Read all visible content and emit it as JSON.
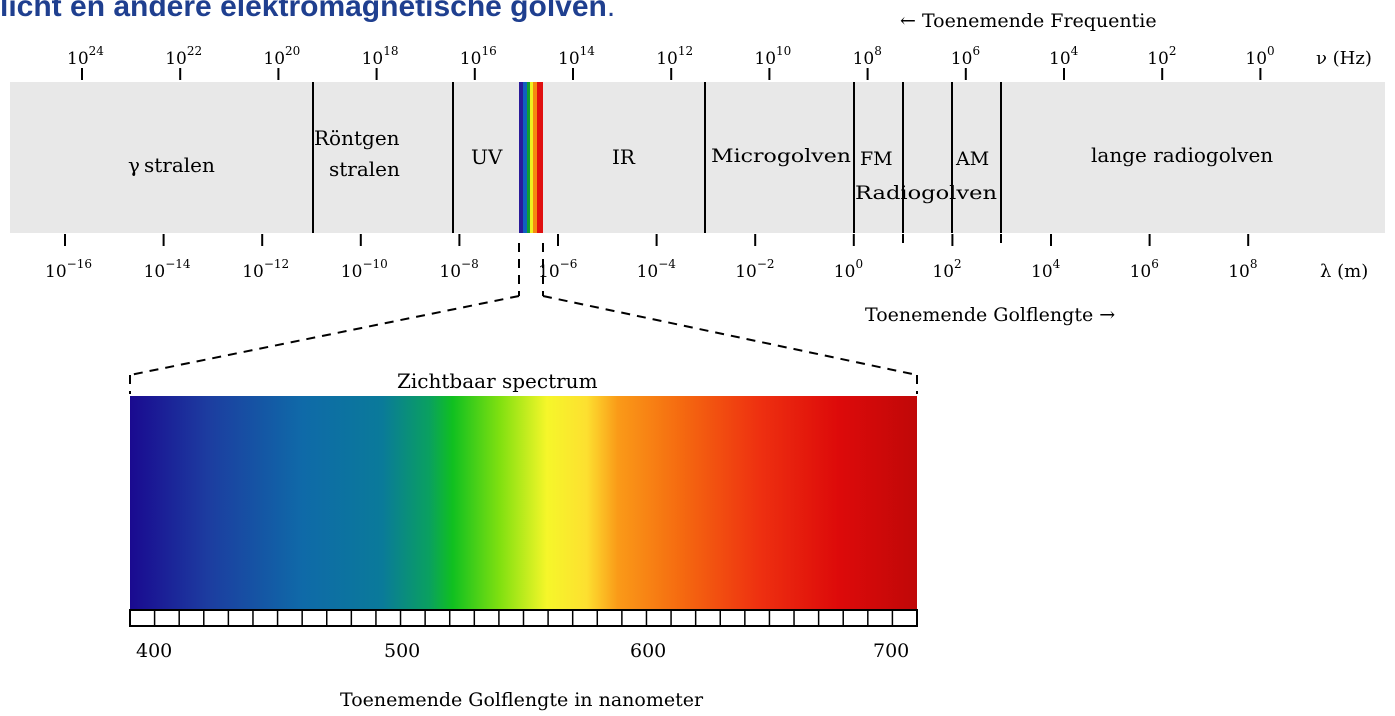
{
  "heading": {
    "bold": "licht en andere elektromagnetische golven",
    "tail": "."
  },
  "frequency_axis": {
    "title": "←  Toenemende Frequentie",
    "unit_label": "ν (Hz)",
    "ticks": [
      {
        "base": "10",
        "exp": "24"
      },
      {
        "base": "10",
        "exp": "22"
      },
      {
        "base": "10",
        "exp": "20"
      },
      {
        "base": "10",
        "exp": "18"
      },
      {
        "base": "10",
        "exp": "16"
      },
      {
        "base": "10",
        "exp": "14"
      },
      {
        "base": "10",
        "exp": "12"
      },
      {
        "base": "10",
        "exp": "10"
      },
      {
        "base": "10",
        "exp": "8"
      },
      {
        "base": "10",
        "exp": "6"
      },
      {
        "base": "10",
        "exp": "4"
      },
      {
        "base": "10",
        "exp": "2"
      },
      {
        "base": "10",
        "exp": "0"
      }
    ]
  },
  "wavelength_axis": {
    "title": "Toenemende Golflengte  →",
    "unit_label": "λ (m)",
    "ticks": [
      {
        "base": "10",
        "exp": "−16"
      },
      {
        "base": "10",
        "exp": "−14"
      },
      {
        "base": "10",
        "exp": "−12"
      },
      {
        "base": "10",
        "exp": "−10"
      },
      {
        "base": "10",
        "exp": "−8"
      },
      {
        "base": "10",
        "exp": "−6"
      },
      {
        "base": "10",
        "exp": "−4"
      },
      {
        "base": "10",
        "exp": "−2"
      },
      {
        "base": "10",
        "exp": "0"
      },
      {
        "base": "10",
        "exp": "2"
      },
      {
        "base": "10",
        "exp": "4"
      },
      {
        "base": "10",
        "exp": "6"
      },
      {
        "base": "10",
        "exp": "8"
      }
    ]
  },
  "regions": {
    "gamma": {
      "symbol": "γ",
      "text": "stralen"
    },
    "xray": {
      "line1": "Röntgen",
      "line2": "stralen"
    },
    "uv": "UV",
    "ir": "IR",
    "micro": "Microgolven",
    "fm": "FM",
    "am": "AM",
    "radio": "Radiogolven",
    "long_radio": "lange radiogolven"
  },
  "visible": {
    "title": "Zichtbaar spectrum",
    "tick_labels": [
      "400",
      "500",
      "600",
      "700"
    ],
    "axis_title": "Toenemende Golflengte in nanometer"
  },
  "colors": {
    "band_fill": "#e8e8e8",
    "heading_text": "#1f3f8f"
  }
}
